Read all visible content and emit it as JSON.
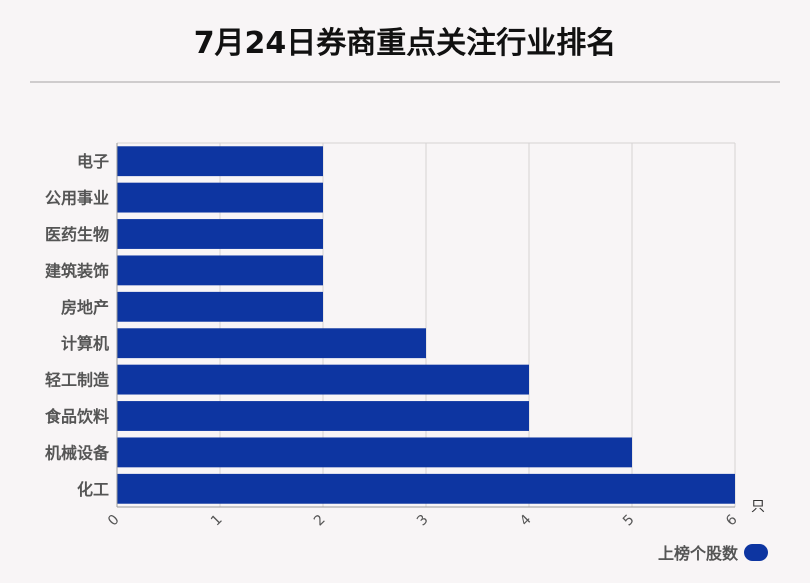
{
  "title": "7月24日券商重点关注行业排名",
  "colors": {
    "bar": "#0d35a1",
    "grid": "#d6d2d3",
    "axis": "#999999",
    "label": "#555555"
  },
  "chart_data": {
    "type": "bar",
    "orientation": "horizontal",
    "categories": [
      "电子",
      "公用事业",
      "医药生物",
      "建筑装饰",
      "房地产",
      "计算机",
      "轻工制造",
      "食品饮料",
      "机械设备",
      "化工"
    ],
    "series": [
      {
        "name": "上榜个股数",
        "values": [
          2,
          2,
          2,
          2,
          2,
          3,
          4,
          4,
          5,
          6
        ]
      }
    ],
    "xlim": [
      0,
      6
    ],
    "xticks": [
      "0",
      "1",
      "2",
      "3",
      "4",
      "5",
      "6"
    ],
    "xunit": "只",
    "grid": true,
    "legend_position": "bottom-right"
  }
}
